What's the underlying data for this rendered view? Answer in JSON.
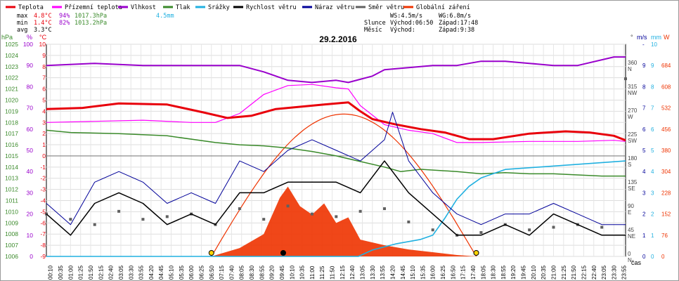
{
  "chart_data": {
    "type": "line",
    "title": "29.2.2016",
    "legend": [
      {
        "label": "Teplota",
        "color": "#e8000b"
      },
      {
        "label": "Přízemní teplota",
        "color": "#ff00ff"
      },
      {
        "label": "Vlhkost",
        "color": "#9900cc"
      },
      {
        "label": "Tlak",
        "color": "#3a8a2a"
      },
      {
        "label": "Srážky",
        "color": "#20b0e0"
      },
      {
        "label": "Rychlost větru",
        "color": "#000000"
      },
      {
        "label": "Náraz větru",
        "color": "#000099"
      },
      {
        "label": "Směr větru",
        "color": "#606060"
      },
      {
        "label": "Globální záření",
        "color": "#ee3300"
      }
    ],
    "stats": {
      "max": {
        "label": "max",
        "temp": "4.8°C",
        "hum": "94%",
        "press": "1017.3hPa",
        "rain": "4.5mm"
      },
      "min": {
        "label": "min",
        "temp": "1.4°C",
        "hum": "82%",
        "press": "1013.2hPa"
      },
      "avg": {
        "label": "avg",
        "temp": "3.3°C"
      }
    },
    "wind_info": {
      "ws": "WS:4.5m/s",
      "wg": "WG:6.8m/s"
    },
    "sun": {
      "label": "Slunce",
      "rise": "Východ:06:50",
      "set": "Západ:17:48"
    },
    "moon": {
      "label": "Měsíc",
      "rise": "Východ:",
      "set": "Západ:9:38"
    },
    "axis_units": {
      "press": "hPa",
      "hum": "%",
      "temp": "°C",
      "dir": "°",
      "wind": "m/s",
      "rain": "mm",
      "rad": "W",
      "time": "čas"
    },
    "press_ticks": [
      "1025",
      "1024",
      "1023",
      "1022",
      "1021",
      "1020",
      "1019",
      "1018",
      "1017",
      "1016",
      "1015",
      "1014",
      "1013",
      "1012",
      "1011",
      "1010",
      "1009",
      "1008",
      "1007",
      "1006"
    ],
    "hum_ticks": [
      "100",
      "90",
      "80",
      "70",
      "60",
      "50",
      "40",
      "30",
      "20",
      "10",
      "0"
    ],
    "temp_ticks": [
      "10",
      "9",
      "8",
      "7",
      "6",
      "5",
      "4",
      "3",
      "2",
      "1",
      "0",
      "-1",
      "-2",
      "-3",
      "-4",
      "-5",
      "-6",
      "-7",
      "-8",
      "-9"
    ],
    "dir_ticks": [
      "360",
      "315",
      "270",
      "225",
      "180",
      "135",
      "90",
      "45",
      "0"
    ],
    "dir_labels": [
      "N",
      "NW",
      "W",
      "SW",
      "S",
      "SE",
      "E",
      "NE",
      "N"
    ],
    "wind_ticks": [
      "-",
      "9",
      "8",
      "7",
      "6",
      "5",
      "4",
      "3",
      "2",
      "1",
      "0"
    ],
    "rain_ticks": [
      "10",
      "9",
      "8",
      "7",
      "6",
      "5",
      "4",
      "3",
      "2",
      "1",
      "0"
    ],
    "rad_ticks": [
      "684",
      "608",
      "532",
      "456",
      "380",
      "304",
      "228",
      "152",
      "76",
      "0"
    ],
    "time_labels": [
      "00:10",
      "00:35",
      "01:00",
      "01:25",
      "01:50",
      "02:15",
      "02:40",
      "03:05",
      "03:30",
      "03:55",
      "04:20",
      "04:45",
      "05:10",
      "05:35",
      "06:00",
      "06:25",
      "06:50",
      "07:15",
      "07:40",
      "08:05",
      "08:30",
      "08:55",
      "09:20",
      "09:45",
      "10:10",
      "10:35",
      "11:00",
      "11:25",
      "11:50",
      "12:15",
      "12:40",
      "13:05",
      "13:30",
      "13:55",
      "14:20",
      "14:45",
      "15:10",
      "15:35",
      "16:00",
      "16:25",
      "16:50",
      "17:15",
      "17:40",
      "18:05",
      "18:30",
      "18:55",
      "19:20",
      "19:45",
      "20:10",
      "20:35",
      "21:00",
      "21:25",
      "21:50",
      "22:15",
      "22:40",
      "23:05",
      "23:30",
      "23:55"
    ],
    "ylim_temp": [
      -9,
      10
    ],
    "series": [
      {
        "name": "Teplota",
        "unit": "°C",
        "x": [
          "00:00",
          "01:30",
          "03:00",
          "05:00",
          "06:30",
          "07:30",
          "08:30",
          "09:30",
          "10:30",
          "11:30",
          "12:30",
          "13:00",
          "13:30",
          "14:30",
          "15:30",
          "16:30",
          "17:30",
          "18:30",
          "20:00",
          "21:30",
          "22:30",
          "23:30",
          "23:59"
        ],
        "values": [
          4.2,
          4.3,
          4.7,
          4.6,
          3.9,
          3.4,
          3.6,
          4.2,
          4.4,
          4.6,
          4.8,
          4.0,
          3.3,
          2.8,
          2.4,
          2.1,
          1.5,
          1.5,
          2.0,
          2.2,
          2.1,
          1.8,
          1.4
        ]
      },
      {
        "name": "Přízemní teplota",
        "unit": "°C",
        "x": [
          "00:00",
          "02:00",
          "04:00",
          "06:00",
          "07:00",
          "08:00",
          "09:00",
          "10:00",
          "11:00",
          "12:00",
          "12:30",
          "13:00",
          "14:00",
          "15:00",
          "16:00",
          "17:00",
          "18:00",
          "20:00",
          "22:00",
          "23:30",
          "23:59"
        ],
        "values": [
          3.0,
          3.1,
          3.2,
          3.0,
          3.0,
          3.8,
          5.5,
          6.3,
          6.4,
          6.1,
          6.0,
          4.5,
          2.8,
          2.3,
          2.0,
          1.2,
          1.2,
          1.3,
          1.3,
          1.4,
          1.3
        ]
      },
      {
        "name": "Vlhkost",
        "unit": "%",
        "x": [
          "00:00",
          "02:00",
          "04:00",
          "06:00",
          "07:00",
          "08:00",
          "09:00",
          "10:00",
          "11:00",
          "12:00",
          "12:30",
          "13:30",
          "14:00",
          "15:00",
          "16:00",
          "17:00",
          "18:00",
          "19:00",
          "20:00",
          "21:00",
          "22:00",
          "23:30",
          "23:59"
        ],
        "values": [
          90,
          91,
          90,
          90,
          90,
          90,
          87,
          83,
          82,
          83,
          82,
          85,
          88,
          89,
          90,
          90,
          92,
          92,
          91,
          90,
          90,
          94,
          94
        ]
      },
      {
        "name": "Tlak",
        "unit": "hPa",
        "x": [
          "00:00",
          "01:00",
          "03:00",
          "05:00",
          "07:00",
          "08:00",
          "09:00",
          "10:00",
          "11:00",
          "12:00",
          "13:00",
          "14:00",
          "14:40",
          "15:30",
          "17:00",
          "18:00",
          "19:00",
          "20:00",
          "21:00",
          "22:00",
          "23:00",
          "23:59"
        ],
        "values": [
          1017.3,
          1017.1,
          1017.0,
          1016.8,
          1016.2,
          1016.0,
          1015.9,
          1015.7,
          1015.4,
          1015.0,
          1014.5,
          1014.0,
          1013.6,
          1013.8,
          1013.6,
          1013.4,
          1013.5,
          1013.4,
          1013.4,
          1013.3,
          1013.2,
          1013.2
        ]
      },
      {
        "name": "Srážky",
        "unit": "mm",
        "x": [
          "00:00",
          "12:00",
          "12:55",
          "13:30",
          "14:30",
          "15:30",
          "16:00",
          "16:30",
          "17:00",
          "17:30",
          "18:00",
          "19:00",
          "23:59"
        ],
        "values": [
          0,
          0,
          0.0,
          0.3,
          0.6,
          0.8,
          1.0,
          1.8,
          2.7,
          3.3,
          3.7,
          4.1,
          4.5
        ]
      },
      {
        "name": "Rychlost větru",
        "unit": "m/s",
        "x": [
          "00:00",
          "01:00",
          "02:00",
          "03:00",
          "04:00",
          "05:00",
          "06:00",
          "07:00",
          "08:00",
          "09:00",
          "10:00",
          "11:00",
          "12:00",
          "13:00",
          "14:00",
          "15:00",
          "16:00",
          "17:00",
          "18:00",
          "19:00",
          "20:00",
          "21:00",
          "22:00",
          "23:00",
          "23:59"
        ],
        "values": [
          2.0,
          1.0,
          2.5,
          3.0,
          2.5,
          1.5,
          2.0,
          1.5,
          3.0,
          3.0,
          3.5,
          3.5,
          3.5,
          3.0,
          4.5,
          3.0,
          2.0,
          1.0,
          1.0,
          1.5,
          1.0,
          2.0,
          1.5,
          1.0,
          1.0
        ]
      },
      {
        "name": "Náraz větru",
        "unit": "m/s",
        "x": [
          "00:00",
          "01:00",
          "02:00",
          "03:00",
          "04:00",
          "05:00",
          "06:00",
          "07:00",
          "08:00",
          "09:00",
          "10:00",
          "11:00",
          "12:00",
          "13:00",
          "14:00",
          "14:20",
          "15:00",
          "16:00",
          "17:00",
          "18:00",
          "19:00",
          "20:00",
          "21:00",
          "22:00",
          "23:00",
          "23:59"
        ],
        "values": [
          2.5,
          1.5,
          3.5,
          4.0,
          3.5,
          2.5,
          3.0,
          2.5,
          4.5,
          4.0,
          5.0,
          5.5,
          5.0,
          4.5,
          5.5,
          6.8,
          4.5,
          3.0,
          2.0,
          1.5,
          2.0,
          2.0,
          2.5,
          2.0,
          1.5,
          1.5
        ]
      },
      {
        "name": "Globální záření",
        "unit": "W",
        "x": [
          "00:00",
          "06:50",
          "08:00",
          "09:00",
          "09:40",
          "10:00",
          "10:30",
          "11:00",
          "11:30",
          "12:00",
          "12:30",
          "13:00",
          "14:00",
          "15:00",
          "16:00",
          "17:00",
          "17:48",
          "23:59"
        ],
        "values": [
          0,
          0,
          30,
          80,
          210,
          250,
          180,
          150,
          190,
          120,
          140,
          60,
          40,
          25,
          15,
          5,
          0,
          0
        ]
      },
      {
        "name": "Směr větru",
        "unit": "°",
        "x": [
          "00:00",
          "01:00",
          "02:00",
          "03:00",
          "04:00",
          "05:00",
          "06:00",
          "07:00",
          "08:00",
          "09:00",
          "10:00",
          "11:00",
          "12:00",
          "13:00",
          "14:00",
          "15:00",
          "16:00",
          "17:00",
          "18:00",
          "19:00",
          "20:00",
          "21:00",
          "22:00",
          "23:00",
          "23:59"
        ],
        "values": [
          80,
          70,
          60,
          85,
          70,
          75,
          80,
          60,
          90,
          70,
          95,
          80,
          75,
          85,
          90,
          65,
          50,
          40,
          45,
          60,
          50,
          55,
          60,
          55,
          335
        ]
      }
    ]
  }
}
